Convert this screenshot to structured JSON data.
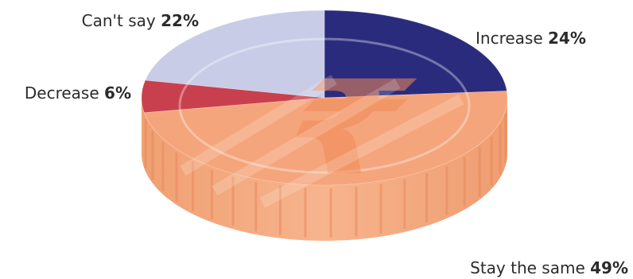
{
  "chart_data": {
    "type": "pie",
    "style": "3d coin with rupee symbol",
    "slices": [
      {
        "label": "Increase",
        "value": 24,
        "value_label": "24%",
        "color": "#2b2b7e"
      },
      {
        "label": "Stay the same",
        "value": 49,
        "value_label": "49%",
        "color": "#f5a57c"
      },
      {
        "label": "Decrease",
        "value": 6,
        "value_label": "6%",
        "color": "#c8404e"
      },
      {
        "label": "Can't say",
        "value": 22,
        "value_label": "22%",
        "color": "#c8cce6"
      }
    ],
    "side_color": "#f2a276",
    "symbol": "₹"
  }
}
